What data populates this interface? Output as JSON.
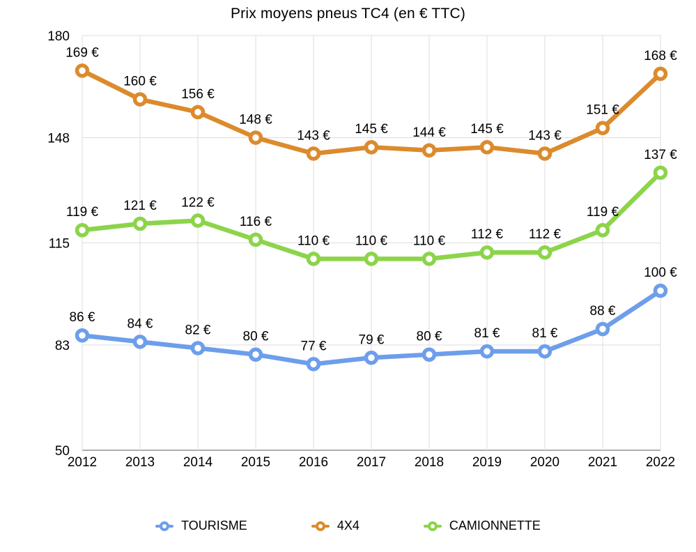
{
  "chart": {
    "title": "Prix moyens pneus TC4 (en € TTC)"
  },
  "chart_data": {
    "type": "line",
    "title": "Prix moyens pneus TC4 (en € TTC)",
    "categories": [
      "2012",
      "2013",
      "2014",
      "2015",
      "2016",
      "2017",
      "2018",
      "2019",
      "2020",
      "2021",
      "2022"
    ],
    "series": [
      {
        "name": "TOURISME",
        "color": "#6D9EEB",
        "values": [
          86,
          84,
          82,
          80,
          77,
          79,
          80,
          81,
          81,
          88,
          100
        ]
      },
      {
        "name": "4X4",
        "color": "#DB8B2D",
        "values": [
          169,
          160,
          156,
          148,
          143,
          145,
          144,
          145,
          143,
          151,
          168
        ]
      },
      {
        "name": "CAMIONNETTE",
        "color": "#8CD44A",
        "values": [
          119,
          121,
          122,
          116,
          110,
          110,
          110,
          112,
          112,
          119,
          137
        ]
      }
    ],
    "xlabel": "",
    "ylabel": "",
    "ylim": [
      50,
      180
    ],
    "yticks": [
      50,
      83,
      115,
      148,
      180
    ],
    "grid": true,
    "legend_position": "bottom",
    "value_label_suffix": " €",
    "colors": {
      "grid": "#dcdcdc",
      "axis": "#adadad",
      "text": "#000000",
      "marker_fill": "#ffffff"
    }
  }
}
